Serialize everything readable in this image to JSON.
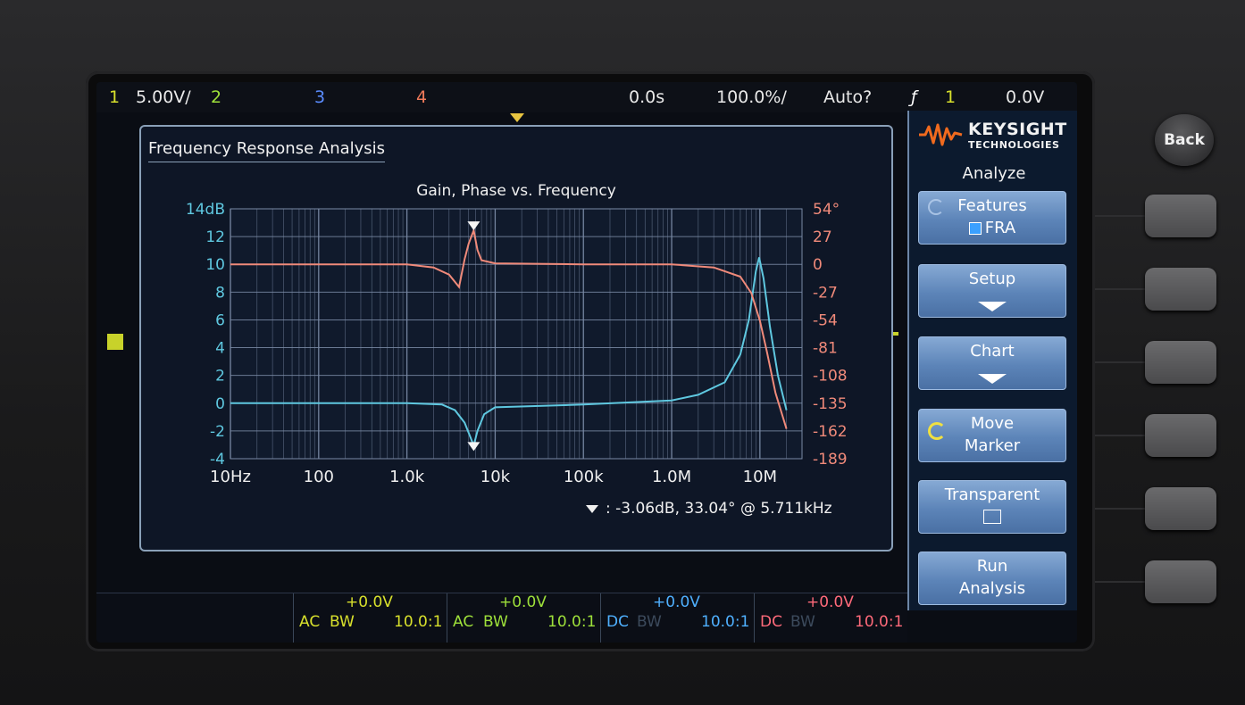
{
  "topbar": {
    "ch1_num": "1",
    "ch1_scale": "5.00V/",
    "ch2_num": "2",
    "ch3_num": "3",
    "ch4_num": "4",
    "time_offset": "0.0s",
    "timebase": "100.0%/",
    "trigger_mode": "Auto?",
    "trigger_icon": "ƒ",
    "trigger_source": "1",
    "trigger_level": "0.0V"
  },
  "panel": {
    "title": "Frequency Response Analysis"
  },
  "chart_data": {
    "type": "line",
    "title": "Gain, Phase vs. Frequency",
    "x_scale": "log",
    "x_tick_values": [
      10,
      100,
      1000,
      10000,
      100000,
      1000000,
      10000000
    ],
    "x_tick_labels": [
      "10Hz",
      "100",
      "1.0k",
      "10k",
      "100k",
      "1.0M",
      "10M"
    ],
    "xlim": [
      10,
      30000000
    ],
    "gain_axis": {
      "ticks": [
        "14dB",
        "12",
        "10",
        "8",
        "6",
        "4",
        "2",
        "0",
        "-2",
        "-4"
      ],
      "ylim": [
        -4,
        14
      ],
      "color": "#5fc8e0"
    },
    "phase_axis": {
      "ticks": [
        "54°",
        "27",
        "0",
        "-27",
        "-54",
        "-81",
        "-108",
        "-135",
        "-162",
        "-189"
      ],
      "ylim": [
        -189,
        54
      ],
      "color": "#f08a7a"
    },
    "series": [
      {
        "axis": "gain",
        "color": "#5fc8e0",
        "x": [
          10,
          100,
          1000,
          2500,
          3500,
          4500,
          5200,
          5711,
          6300,
          7500,
          10000,
          100000,
          1000000,
          2000000,
          4000000,
          6000000,
          7500000,
          9000000,
          9800000,
          11000000,
          13000000,
          16000000,
          20000000
        ],
        "y": [
          0,
          0,
          0,
          -0.1,
          -0.5,
          -1.4,
          -2.4,
          -3.06,
          -2.0,
          -0.8,
          -0.3,
          -0.1,
          0.2,
          0.6,
          1.5,
          3.5,
          6.0,
          9.5,
          10.5,
          9.0,
          5.5,
          2.0,
          -0.5
        ]
      },
      {
        "axis": "phase",
        "color": "#f08a7a",
        "x": [
          10,
          100,
          1000,
          2000,
          3000,
          3900,
          4500,
          5000,
          5711,
          6300,
          7000,
          10000,
          100000,
          1000000,
          3000000,
          6000000,
          8000000,
          10000000,
          12000000,
          15000000,
          20000000
        ],
        "y": [
          0,
          0,
          0,
          -3,
          -10,
          -22,
          5,
          20,
          33,
          14,
          4,
          1,
          0,
          0,
          -3,
          -12,
          -28,
          -55,
          -85,
          -125,
          -160
        ]
      }
    ],
    "marker": {
      "x": 5711,
      "gain": -3.06,
      "phase": 33.04
    }
  },
  "marker_readout": ":   -3.06dB, 33.04° @ 5.711kHz",
  "menu": {
    "brand_line1": "KEYSIGHT",
    "brand_line2": "TECHNOLOGIES",
    "title": "Analyze",
    "features_label": "Features",
    "features_value": "FRA",
    "setup_label": "Setup",
    "chart_label": "Chart",
    "move_marker_l1": "Move",
    "move_marker_l2": "Marker",
    "transparent_label": "Transparent",
    "run_l1": "Run",
    "run_l2": "Analysis"
  },
  "hardware": {
    "back_label": "Back"
  },
  "channels": [
    {
      "offset": "+0.0V",
      "coupling": "AC",
      "bw": "BW",
      "probe": "10.0:1",
      "color": "#d8e02c"
    },
    {
      "offset": "+0.0V",
      "coupling": "AC",
      "bw": "BW",
      "probe": "10.0:1",
      "color": "#9ee03a"
    },
    {
      "offset": "+0.0V",
      "coupling": "DC",
      "bw": "BW",
      "probe": "10.0:1",
      "color": "#4fb0ff"
    },
    {
      "offset": "+0.0V",
      "coupling": "DC",
      "bw": "BW",
      "probe": "10.0:1",
      "color": "#ff6a7a"
    }
  ],
  "colors": {
    "ch1": "#d8e02c",
    "ch2": "#9ee03a",
    "ch3": "#5a8cff",
    "ch4": "#f07a5a",
    "grid": "#7a8aa6",
    "menu_button": "#5c84b8"
  }
}
